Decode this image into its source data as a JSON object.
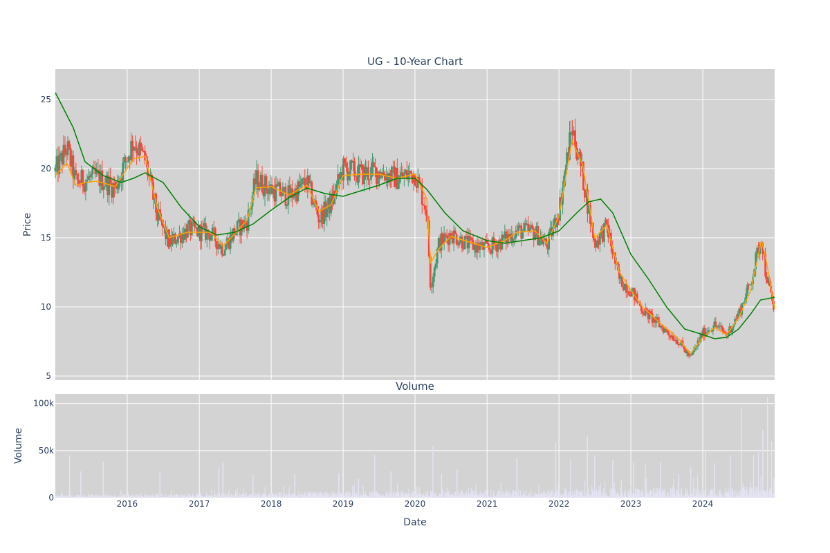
{
  "chart_data": [
    {
      "type": "candlestick",
      "title": "UG - 10-Year Chart",
      "ylabel": "Price",
      "ylim": [
        4.7,
        27.2
      ],
      "xlim": [
        "2015-01-01",
        "2024-12-31"
      ],
      "yticks": [
        5,
        10,
        15,
        20,
        25
      ],
      "grid": true,
      "legend": "none",
      "colors": {
        "background": "#d3d3d3",
        "grid": "#ffffff",
        "up": "#3d9970",
        "down": "#ff4136",
        "ma_fast": "#ffa500",
        "ma_slow": "#008000"
      },
      "series": [
        {
          "style": "candles",
          "x": [
            "2015-01-01",
            "2015-03-01",
            "2015-04-15",
            "2015-06-01",
            "2015-08-01",
            "2015-11-01",
            "2016-02-01",
            "2016-04-01",
            "2016-06-01",
            "2016-08-01",
            "2016-11-01",
            "2017-03-01",
            "2017-05-01",
            "2017-07-01",
            "2017-09-01",
            "2017-10-15",
            "2018-01-01",
            "2018-04-01",
            "2018-07-01",
            "2018-09-01",
            "2018-11-01",
            "2019-01-01",
            "2019-04-01",
            "2019-07-01",
            "2019-10-01",
            "2020-01-01",
            "2020-03-01",
            "2020-03-20",
            "2020-05-01",
            "2020-07-01",
            "2020-10-01",
            "2021-01-01",
            "2021-04-01",
            "2021-06-01",
            "2021-09-01",
            "2021-11-01",
            "2022-01-01",
            "2022-03-08",
            "2022-05-01",
            "2022-07-01",
            "2022-09-01",
            "2022-11-01",
            "2023-01-01",
            "2023-03-01",
            "2023-06-01",
            "2023-09-01",
            "2023-10-30",
            "2024-01-01",
            "2024-03-01",
            "2024-05-01",
            "2024-07-01",
            "2024-09-01",
            "2024-10-25",
            "2024-11-15",
            "2024-12-31"
          ],
          "close": [
            19.8,
            21.5,
            19.0,
            19.2,
            19.4,
            18.6,
            22.0,
            20.6,
            16.6,
            14.6,
            15.6,
            15.3,
            14.2,
            15.5,
            16.2,
            19.2,
            18.5,
            18.0,
            19.0,
            16.4,
            17.5,
            20.0,
            19.6,
            19.8,
            19.3,
            19.7,
            16.9,
            11.5,
            14.6,
            15.3,
            14.5,
            14.2,
            14.9,
            15.5,
            15.4,
            14.4,
            17.0,
            23.0,
            19.5,
            14.6,
            15.8,
            12.0,
            11.2,
            9.8,
            8.6,
            7.5,
            6.3,
            8.1,
            8.7,
            8.0,
            9.5,
            11.8,
            15.2,
            12.5,
            9.6
          ]
        },
        {
          "name": "",
          "style": "line",
          "color": "#ffa500",
          "x": [
            "2015-01-01",
            "2015-03-01",
            "2015-04-15",
            "2015-06-01",
            "2015-08-01",
            "2015-11-01",
            "2016-02-01",
            "2016-04-01",
            "2016-06-01",
            "2016-08-01",
            "2016-11-01",
            "2017-03-01",
            "2017-05-01",
            "2017-07-01",
            "2017-09-01",
            "2017-10-15",
            "2018-01-01",
            "2018-04-01",
            "2018-07-01",
            "2018-09-01",
            "2018-11-01",
            "2019-01-01",
            "2019-04-01",
            "2019-07-01",
            "2019-10-01",
            "2020-01-01",
            "2020-03-01",
            "2020-03-20",
            "2020-05-01",
            "2020-07-01",
            "2020-10-01",
            "2021-01-01",
            "2021-04-01",
            "2021-06-01",
            "2021-09-01",
            "2021-11-01",
            "2022-01-01",
            "2022-03-08",
            "2022-05-01",
            "2022-07-01",
            "2022-09-01",
            "2022-11-01",
            "2023-01-01",
            "2023-03-01",
            "2023-06-01",
            "2023-09-01",
            "2023-10-30",
            "2024-01-01",
            "2024-03-01",
            "2024-05-01",
            "2024-07-01",
            "2024-09-01",
            "2024-10-25",
            "2024-11-15",
            "2024-12-31"
          ],
          "values": [
            19.5,
            20.4,
            18.8,
            19.0,
            19.1,
            18.7,
            20.7,
            20.9,
            17.2,
            15.0,
            15.4,
            15.4,
            14.4,
            15.3,
            16.3,
            18.6,
            18.7,
            18.1,
            18.8,
            16.9,
            17.4,
            19.5,
            19.6,
            19.6,
            19.3,
            19.6,
            17.8,
            13.2,
            14.2,
            15.1,
            14.7,
            14.3,
            14.8,
            15.4,
            15.5,
            14.6,
            16.6,
            22.0,
            20.3,
            15.0,
            15.9,
            12.6,
            11.2,
            10.0,
            8.8,
            7.7,
            6.6,
            7.8,
            8.5,
            8.0,
            9.2,
            11.2,
            14.8,
            13.6,
            9.9
          ]
        },
        {
          "name": "",
          "style": "line",
          "color": "#008000",
          "x": [
            "2015-01-01",
            "2015-04-01",
            "2015-06-01",
            "2015-09-01",
            "2015-12-01",
            "2016-02-01",
            "2016-04-01",
            "2016-07-01",
            "2016-10-01",
            "2017-01-01",
            "2017-04-01",
            "2017-07-01",
            "2017-10-01",
            "2018-01-01",
            "2018-04-01",
            "2018-07-01",
            "2018-10-01",
            "2019-01-01",
            "2019-04-01",
            "2019-07-01",
            "2019-10-01",
            "2020-01-01",
            "2020-03-01",
            "2020-06-01",
            "2020-09-01",
            "2021-01-01",
            "2021-04-01",
            "2021-07-01",
            "2021-10-01",
            "2022-01-01",
            "2022-04-01",
            "2022-06-01",
            "2022-08-01",
            "2022-10-01",
            "2023-01-01",
            "2023-04-01",
            "2023-07-01",
            "2023-10-01",
            "2024-01-01",
            "2024-03-01",
            "2024-05-01",
            "2024-07-01",
            "2024-09-01",
            "2024-10-20",
            "2024-12-31"
          ],
          "values": [
            25.5,
            23.0,
            20.5,
            19.5,
            19.0,
            19.3,
            19.7,
            19.0,
            17.2,
            15.8,
            15.2,
            15.4,
            16.0,
            17.0,
            17.9,
            18.6,
            18.2,
            18.0,
            18.4,
            18.8,
            19.3,
            19.3,
            18.5,
            16.8,
            15.5,
            14.8,
            14.6,
            14.8,
            15.0,
            15.5,
            16.8,
            17.6,
            17.8,
            16.8,
            13.8,
            12.0,
            10.0,
            8.4,
            8.0,
            7.7,
            7.8,
            8.4,
            9.5,
            10.5,
            10.7
          ]
        }
      ]
    },
    {
      "type": "bar",
      "title": "Volume",
      "xlabel": "Date",
      "ylabel": "Volume",
      "ylim": [
        0,
        110000
      ],
      "yticks": [
        "0",
        "50k",
        "100k"
      ],
      "xticks": [
        "2016",
        "2017",
        "2018",
        "2019",
        "2020",
        "2021",
        "2022",
        "2023",
        "2024"
      ],
      "grid": true,
      "colors": {
        "background": "#d3d3d3",
        "bar": "#e3e3f3",
        "grid": "#ffffff"
      },
      "x": [
        "2015-03-15",
        "2015-05-10",
        "2015-09-01",
        "2016-06-15",
        "2017-04-10",
        "2017-05-01",
        "2017-10-01",
        "2018-05-01",
        "2018-12-10",
        "2019-03-20",
        "2019-06-10",
        "2019-09-01",
        "2020-04-01",
        "2020-05-15",
        "2020-08-01",
        "2021-06-01",
        "2021-12-15",
        "2022-03-01",
        "2022-05-25",
        "2022-07-01",
        "2022-10-01",
        "2023-01-15",
        "2023-03-15",
        "2023-06-01",
        "2023-09-01",
        "2023-11-01",
        "2024-01-15",
        "2024-03-01",
        "2024-05-20",
        "2024-07-15",
        "2024-09-15",
        "2024-10-10",
        "2024-11-01",
        "2024-11-25",
        "2024-12-15"
      ],
      "values": [
        45000,
        28000,
        38000,
        28000,
        32000,
        37000,
        24000,
        25000,
        26000,
        20000,
        45000,
        28000,
        55000,
        25000,
        30000,
        42000,
        58000,
        40000,
        65000,
        45000,
        40000,
        37000,
        35000,
        38000,
        25000,
        32000,
        50000,
        37000,
        45000,
        96000,
        45000,
        48000,
        72000,
        107000,
        60000
      ]
    }
  ]
}
